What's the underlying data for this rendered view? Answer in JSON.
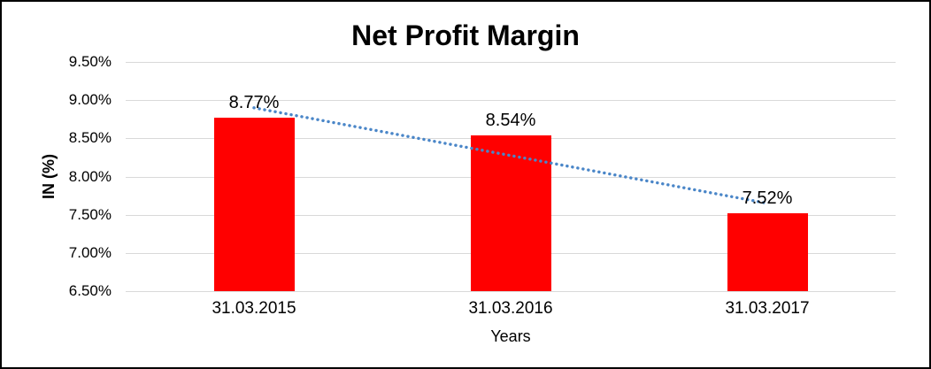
{
  "chart_data": {
    "type": "bar",
    "title": "Net Profit Margin",
    "xlabel": "Years",
    "ylabel": "IN (%)",
    "categories": [
      "31.03.2015",
      "31.03.2016",
      "31.03.2017"
    ],
    "values": [
      8.77,
      8.54,
      7.52
    ],
    "data_labels": [
      "8.77%",
      "8.54%",
      "7.52%"
    ],
    "ylim": [
      6.5,
      9.5
    ],
    "ytick_labels": [
      "9.50%",
      "9.00%",
      "8.50%",
      "8.00%",
      "7.50%",
      "7.00%",
      "6.50%"
    ],
    "ytick_values": [
      9.5,
      9.0,
      8.5,
      8.0,
      7.5,
      7.0,
      6.5
    ],
    "grid": true,
    "legend_position": "none",
    "bar_color": "#ff0000",
    "gridline_color": "#d9d9d9",
    "text_color": "#000000",
    "trendline": {
      "style": "dotted",
      "color": "#4a86c8",
      "start_value": 8.9,
      "end_value": 7.65
    }
  }
}
